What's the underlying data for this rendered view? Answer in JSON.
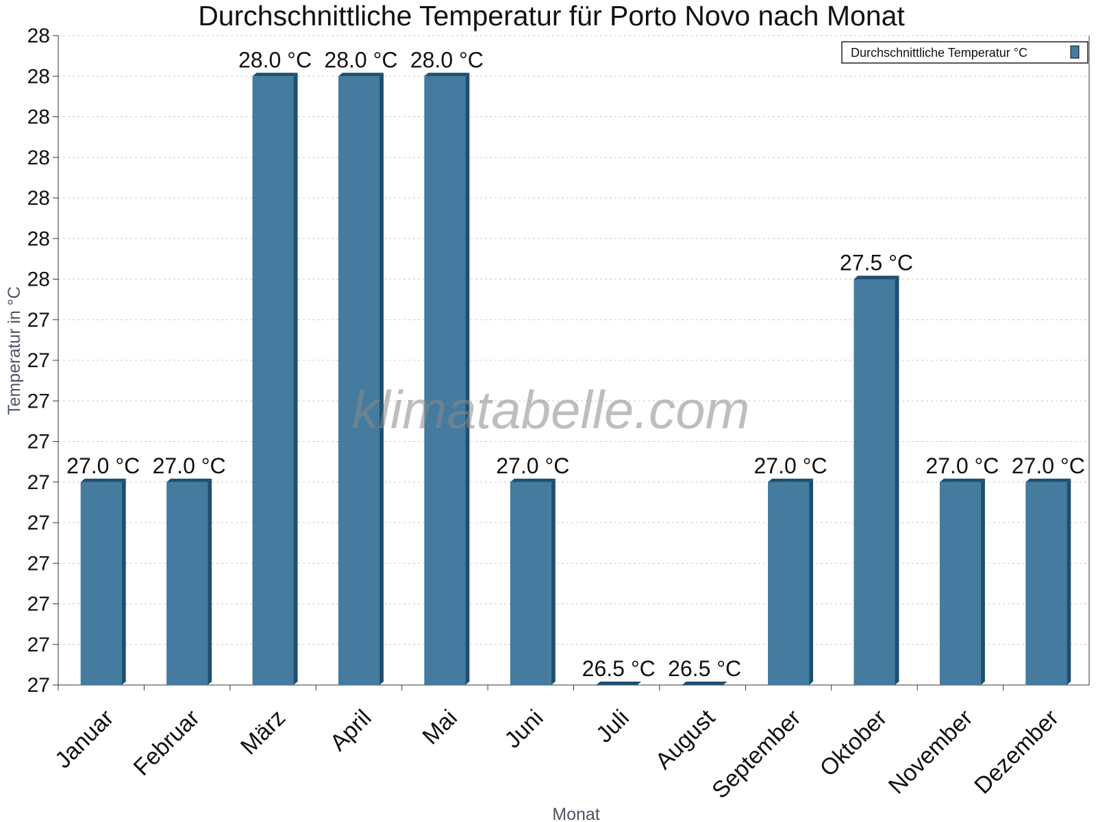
{
  "chart_data": {
    "type": "bar",
    "title": "Durchschnittliche Temperatur für Porto Novo nach Monat",
    "xlabel": "Monat",
    "ylabel": "Temperatur in °C",
    "categories": [
      "Januar",
      "Februar",
      "März",
      "April",
      "Mai",
      "Juni",
      "Juli",
      "August",
      "September",
      "Oktober",
      "November",
      "Dezember"
    ],
    "series": [
      {
        "name": "Durchschnittliche Temperatur °C",
        "values": [
          27.0,
          27.0,
          28.0,
          28.0,
          28.0,
          27.0,
          26.5,
          26.5,
          27.0,
          27.5,
          27.0,
          27.0
        ],
        "value_labels": [
          "27.0 °C",
          "27.0 °C",
          "28.0 °C",
          "28.0 °C",
          "28.0 °C",
          "27.0 °C",
          "26.5 °C",
          "26.5 °C",
          "27.0 °C",
          "27.5 °C",
          "27.0 °C",
          "27.0 °C"
        ]
      }
    ],
    "ylim": [
      26.5,
      28.1
    ],
    "y_ticks": [
      26.5,
      26.6,
      26.7,
      26.8,
      26.9,
      27.0,
      27.1,
      27.2,
      27.3,
      27.4,
      27.5,
      27.6,
      27.7,
      27.8,
      27.9,
      28.0,
      28.1
    ],
    "y_tick_labels": [
      "27",
      "27",
      "27",
      "27",
      "27",
      "27",
      "27",
      "27",
      "27",
      "27",
      "28",
      "28",
      "28",
      "28",
      "28",
      "28",
      "28"
    ],
    "grid": true,
    "legend_position": "top-right",
    "watermark": "klimatabelle.com",
    "colors": {
      "bar_front": "#447b9e",
      "bar_side": "#1f4f70",
      "axis": "#333333",
      "grid": "#c8c8c8"
    }
  }
}
